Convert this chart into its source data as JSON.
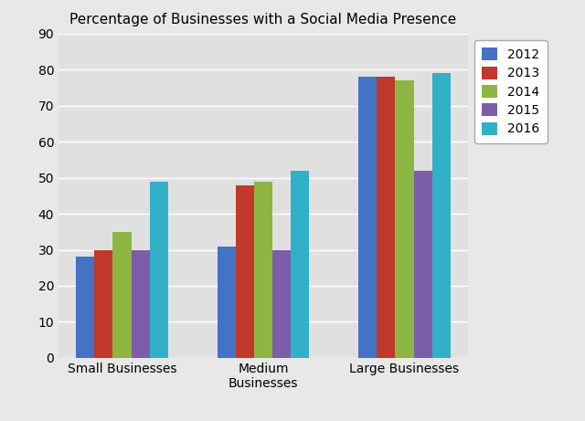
{
  "title": "Percentage of Businesses with a Social Media Presence",
  "categories": [
    "Small Businesses",
    "Medium\nBusinesses",
    "Large Businesses"
  ],
  "years": [
    "2012",
    "2013",
    "2014",
    "2015",
    "2016"
  ],
  "values": [
    [
      28,
      31,
      78
    ],
    [
      30,
      48,
      78
    ],
    [
      35,
      49,
      77
    ],
    [
      30,
      30,
      52
    ],
    [
      49,
      52,
      79
    ]
  ],
  "bar_colors": [
    "#4472c4",
    "#c0392b",
    "#8db542",
    "#7b5ea7",
    "#31b0c8"
  ],
  "ylim": [
    0,
    90
  ],
  "yticks": [
    0,
    10,
    20,
    30,
    40,
    50,
    60,
    70,
    80,
    90
  ],
  "background_color": "#e8e8e8",
  "plot_bg_color": "#e0e0e0",
  "legend_labels": [
    "2012",
    "2013",
    "2014",
    "2015",
    "2016"
  ],
  "bar_width": 0.13,
  "figsize": [
    6.4,
    4.61
  ],
  "dpi": 100,
  "title_fontsize": 11,
  "tick_fontsize": 10,
  "legend_fontsize": 10
}
